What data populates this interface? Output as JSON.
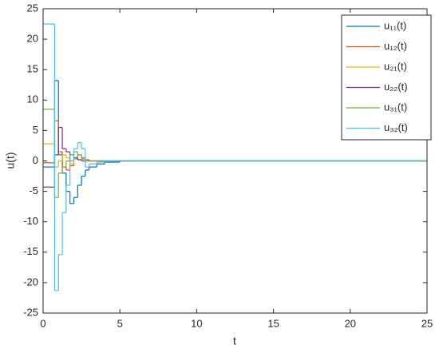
{
  "chart_data": {
    "type": "stairs",
    "xlabel": "t",
    "ylabel": "u(t)",
    "x": [
      0,
      0.75,
      1,
      1.25,
      1.5,
      1.75,
      2,
      2.25,
      2.5,
      2.75,
      3,
      3.5,
      4,
      5,
      6,
      8
    ],
    "series": [
      {
        "name": "u₁₁(t)",
        "color": "#0072BD",
        "values": [
          -1,
          13.2,
          1,
          -2,
          -5,
          -7,
          -6,
          -4,
          -2.5,
          -1.5,
          -1,
          -0.5,
          -0.2,
          0,
          0,
          0
        ]
      },
      {
        "name": "u₁₂(t)",
        "color": "#D95319",
        "values": [
          -0.3,
          6.6,
          1.5,
          -1,
          -1.5,
          -0.8,
          0.5,
          1,
          0.5,
          0.2,
          0,
          0,
          0,
          0,
          0,
          0
        ]
      },
      {
        "name": "u₂₁(t)",
        "color": "#EDB120",
        "values": [
          2.8,
          -1,
          0,
          1,
          0.5,
          -0.5,
          0.3,
          0.2,
          0,
          0,
          0,
          0,
          0,
          0,
          0,
          0
        ]
      },
      {
        "name": "u₂₂(t)",
        "color": "#7E2F8E",
        "values": [
          -4.3,
          1,
          5.5,
          2,
          1.5,
          1,
          0.5,
          0.2,
          0,
          0,
          0,
          0,
          0,
          0,
          0,
          0
        ]
      },
      {
        "name": "u₃₁(t)",
        "color": "#77AC30",
        "values": [
          8.5,
          -6,
          -2,
          -1,
          0,
          1,
          1.5,
          1,
          0.3,
          0,
          0,
          0,
          0,
          0,
          0,
          0
        ]
      },
      {
        "name": "u₃₂(t)",
        "color": "#4DBEEE",
        "values": [
          22.5,
          -21.3,
          -15.4,
          -8.5,
          -4,
          0,
          2,
          3,
          2,
          -1,
          -0.5,
          -0.2,
          0,
          0,
          0,
          0
        ]
      }
    ],
    "xlim": [
      0,
      25
    ],
    "xticks": [
      0,
      5,
      10,
      15,
      20,
      25
    ],
    "ylim": [
      -25,
      25
    ],
    "yticks": [
      -25,
      -20,
      -15,
      -10,
      -5,
      0,
      5,
      10,
      15,
      20,
      25
    ],
    "legend": "upper right",
    "grid": false
  }
}
